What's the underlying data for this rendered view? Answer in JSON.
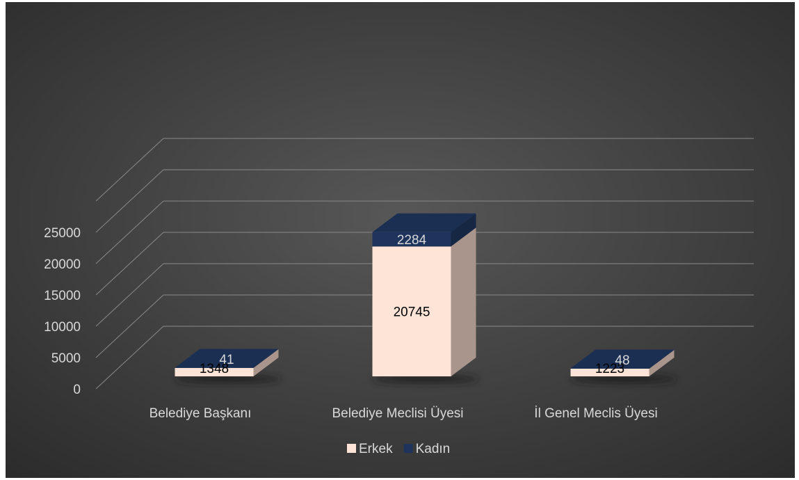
{
  "chart_data": {
    "type": "bar",
    "stacked": true,
    "three_d": true,
    "categories": [
      "Belediye Başkanı",
      "Belediye Meclisi Üyesi",
      "İl Genel Meclis Üyesi"
    ],
    "series": [
      {
        "name": "Erkek",
        "values": [
          1348,
          20745,
          1223
        ]
      },
      {
        "name": "Kadın",
        "values": [
          41,
          2284,
          48
        ]
      }
    ],
    "y_ticks": [
      "0",
      "5000",
      "10000",
      "15000",
      "20000",
      "25000"
    ],
    "ylim": [
      0,
      30000
    ],
    "grid": true,
    "legend_position": "bottom",
    "colors": {
      "Erkek": "#fde4d6",
      "Erkek_side": "#aa958d",
      "Erkek_top": "#f4d8c9",
      "Kadın": "#1e345c",
      "Kadın_side": "#162744",
      "Kadın_top": "#1b2f53",
      "background": "#404040",
      "grid": "#8a8a8a",
      "text": "#d9d9d9"
    }
  }
}
